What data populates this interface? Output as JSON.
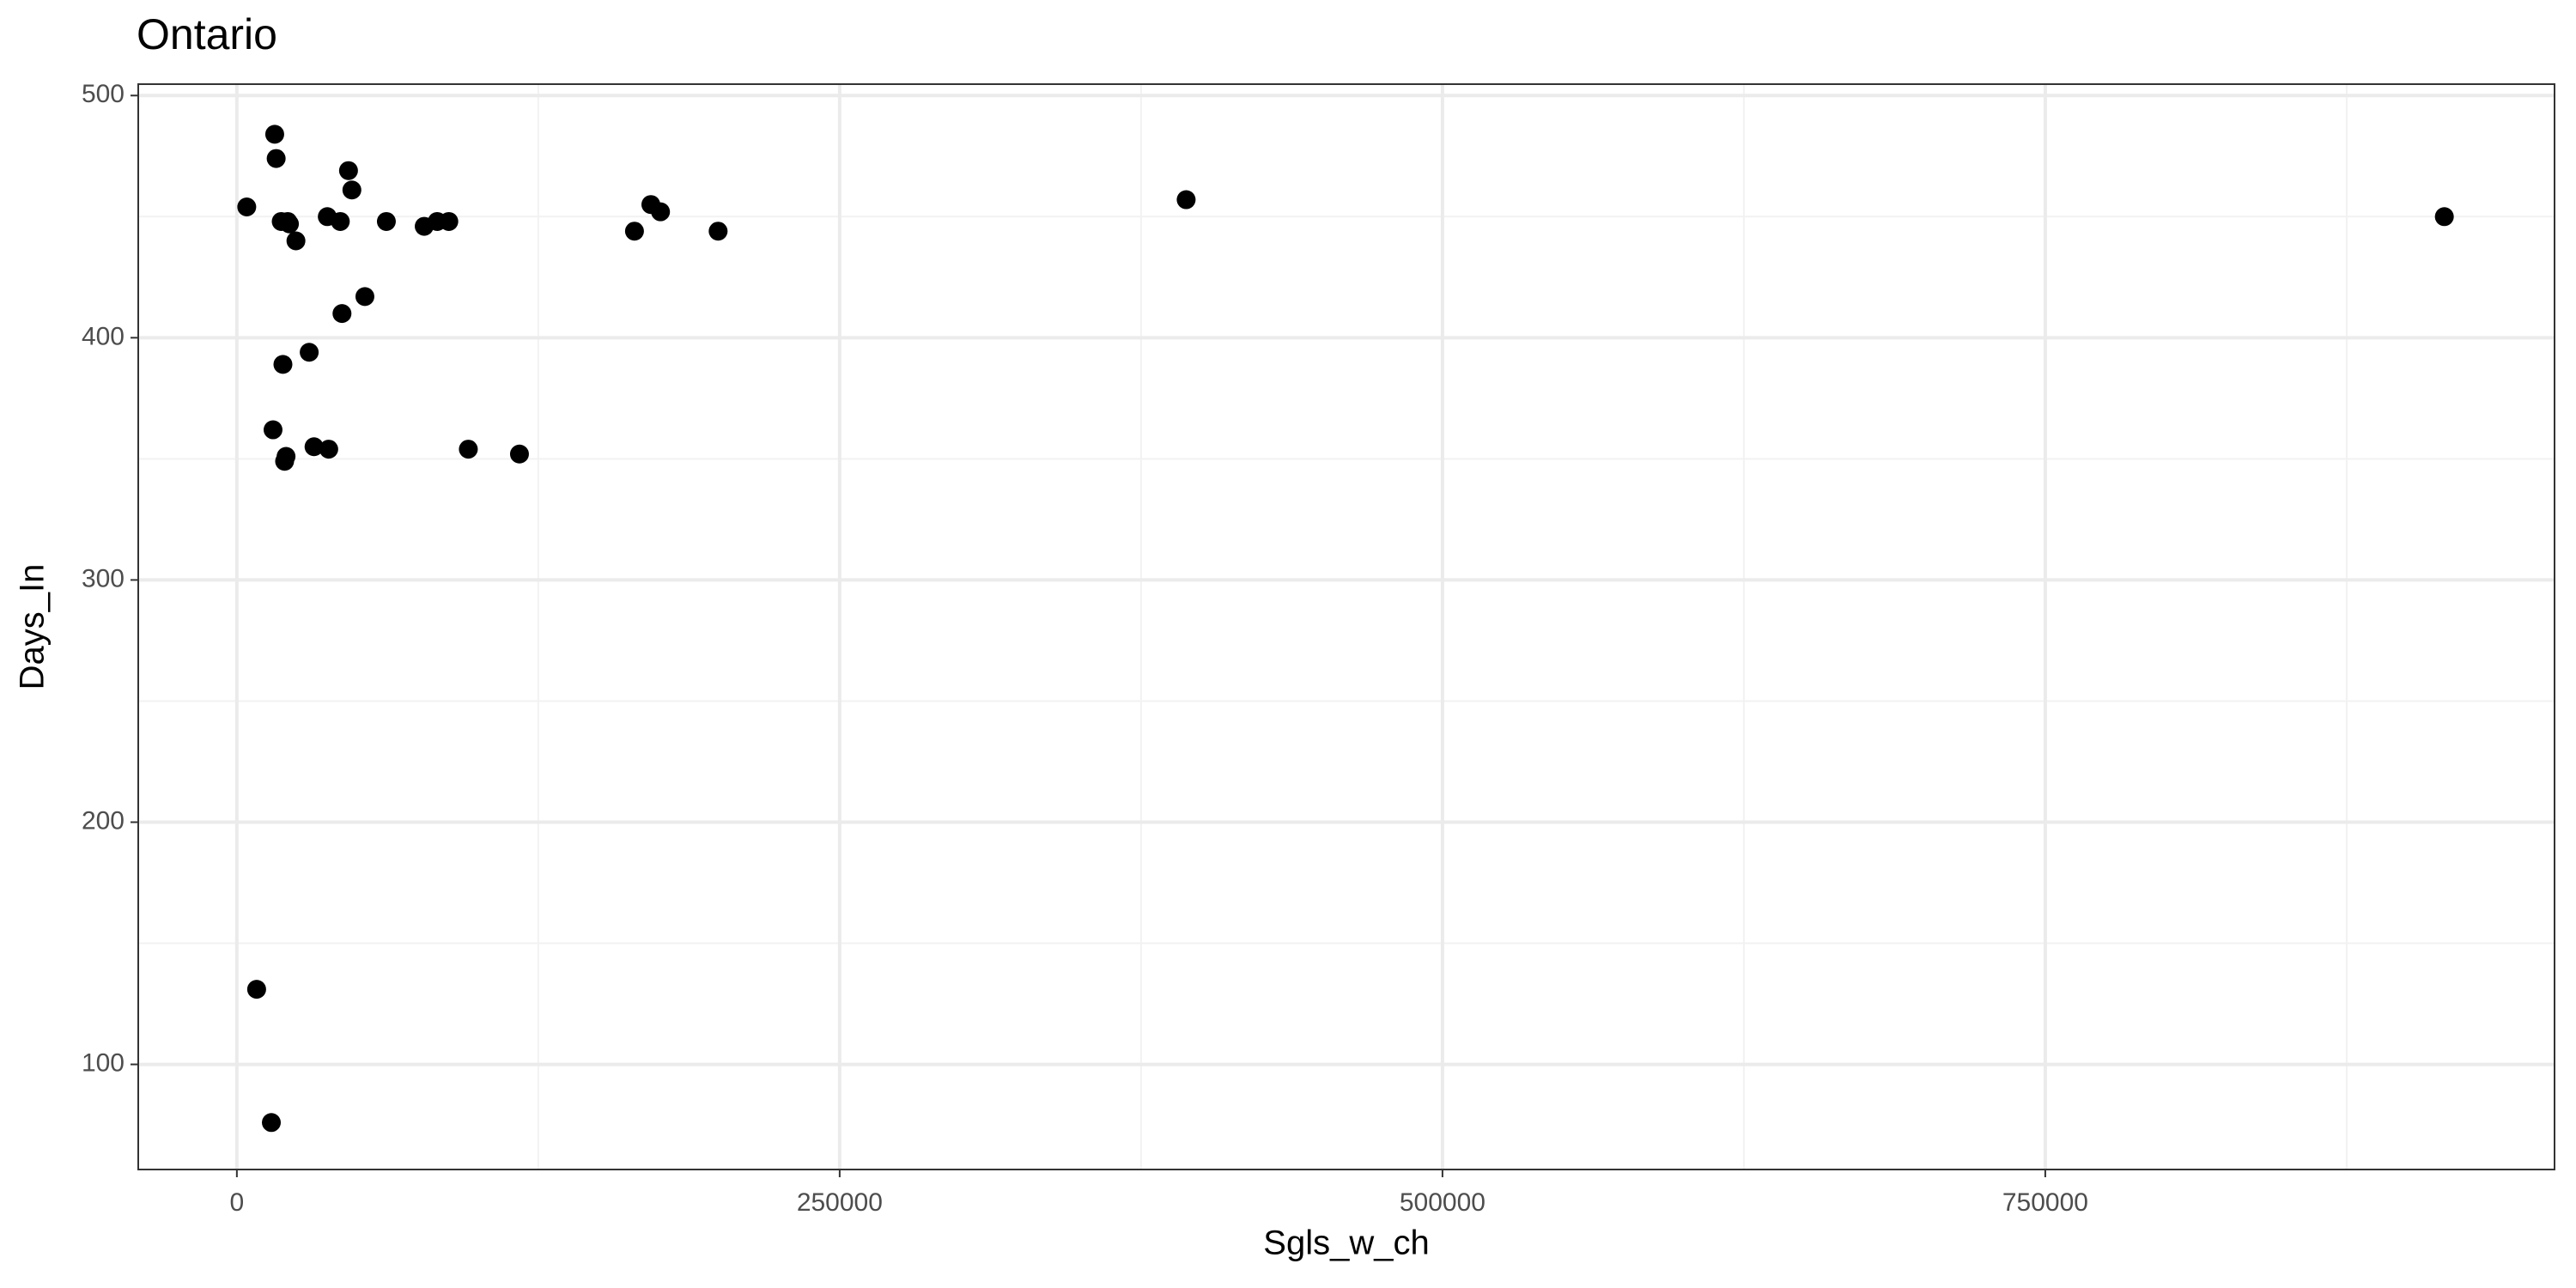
{
  "chart_data": {
    "type": "scatter",
    "title": "Ontario",
    "x_label": "Sgls_w_ch",
    "y_label": "Days_In",
    "color": "#000000",
    "x": [
      4100,
      15700,
      16300,
      18400,
      21100,
      21800,
      24500,
      46300,
      47700,
      37500,
      42900,
      62000,
      77700,
      83100,
      87900,
      43600,
      53100,
      30000,
      19100,
      15000,
      32000,
      38100,
      20400,
      19800,
      96000,
      117200,
      164900,
      171700,
      175700,
      199600,
      393700,
      915500,
      8200,
      14300
    ],
    "values": [
      454,
      484,
      474,
      448,
      448,
      447,
      440,
      469,
      461,
      450,
      448,
      448,
      446,
      448,
      448,
      410,
      417,
      394,
      389,
      362,
      355,
      354,
      351,
      349,
      354,
      352,
      444,
      455,
      452,
      444,
      457,
      450,
      131,
      76
    ],
    "xlim": [
      -40900,
      961200
    ],
    "ylim": [
      56.6,
      504.7
    ],
    "xticks": [
      0,
      250000,
      500000,
      750000
    ],
    "yticks": [
      100,
      200,
      300,
      400,
      500
    ],
    "x_minor_ticks": [
      125000,
      375000,
      625000,
      875000
    ],
    "y_minor_ticks": [
      150,
      250,
      350,
      450
    ],
    "grid": true
  }
}
